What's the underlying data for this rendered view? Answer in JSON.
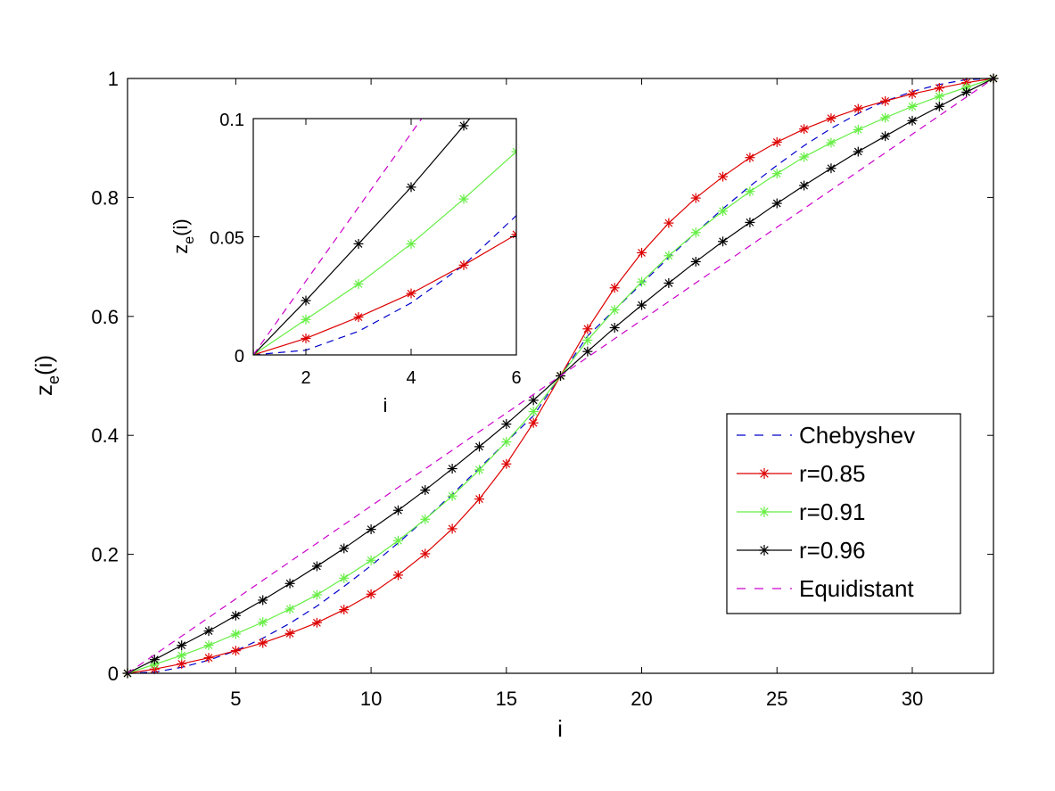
{
  "chart_data": [
    {
      "type": "line",
      "panel": "main",
      "xlabel": "i",
      "ylabel_base": "z",
      "ylabel_sub": "e",
      "ylabel_tail": "(i)",
      "xlim": [
        1,
        33
      ],
      "ylim": [
        0,
        1
      ],
      "xticks": [
        5,
        10,
        15,
        20,
        25,
        30
      ],
      "xtick_labels": [
        "5",
        "10",
        "15",
        "20",
        "25",
        "30"
      ],
      "yticks": [
        0,
        0.2,
        0.4,
        0.6,
        0.8,
        1
      ],
      "ytick_labels": [
        "0",
        "0.2",
        "0.4",
        "0.6",
        "0.8",
        "1"
      ],
      "legend_position": "lower-right",
      "x": [
        1,
        2,
        3,
        4,
        5,
        6,
        7,
        8,
        9,
        10,
        11,
        12,
        13,
        14,
        15,
        16,
        17,
        18,
        19,
        20,
        21,
        22,
        23,
        24,
        25,
        26,
        27,
        28,
        29,
        30,
        31,
        32,
        33
      ],
      "series": [
        {
          "name": "Chebyshev",
          "color": "#0000cc",
          "style": "dashed",
          "marker": "none",
          "values": [
            0.0,
            0.002,
            0.01,
            0.022,
            0.038,
            0.059,
            0.084,
            0.113,
            0.146,
            0.181,
            0.219,
            0.259,
            0.301,
            0.345,
            0.389,
            0.433,
            0.5,
            0.567,
            0.611,
            0.655,
            0.699,
            0.741,
            0.781,
            0.819,
            0.854,
            0.887,
            0.916,
            0.941,
            0.962,
            0.978,
            0.99,
            0.998,
            1.0
          ]
        },
        {
          "name": "r=0.85",
          "color": "#dd0000",
          "style": "solid",
          "marker": "asterisk",
          "values": [
            0.0,
            0.007,
            0.016,
            0.026,
            0.038,
            0.051,
            0.067,
            0.085,
            0.107,
            0.133,
            0.165,
            0.201,
            0.243,
            0.293,
            0.352,
            0.421,
            0.5,
            0.579,
            0.648,
            0.707,
            0.757,
            0.799,
            0.835,
            0.867,
            0.893,
            0.915,
            0.933,
            0.949,
            0.962,
            0.974,
            0.984,
            0.993,
            1.0
          ]
        },
        {
          "name": "r=0.91",
          "color": "#66ee44",
          "style": "solid",
          "marker": "asterisk",
          "values": [
            0.0,
            0.015,
            0.03,
            0.047,
            0.066,
            0.086,
            0.108,
            0.132,
            0.16,
            0.19,
            0.223,
            0.259,
            0.298,
            0.342,
            0.389,
            0.44,
            0.5,
            0.56,
            0.611,
            0.658,
            0.702,
            0.741,
            0.777,
            0.81,
            0.84,
            0.868,
            0.892,
            0.914,
            0.934,
            0.953,
            0.97,
            0.985,
            1.0
          ]
        },
        {
          "name": "r=0.96",
          "color": "#000000",
          "style": "solid",
          "marker": "asterisk",
          "values": [
            0.0,
            0.023,
            0.047,
            0.071,
            0.097,
            0.123,
            0.151,
            0.18,
            0.21,
            0.242,
            0.274,
            0.308,
            0.344,
            0.381,
            0.419,
            0.459,
            0.5,
            0.541,
            0.581,
            0.619,
            0.656,
            0.692,
            0.726,
            0.758,
            0.79,
            0.82,
            0.849,
            0.877,
            0.903,
            0.929,
            0.953,
            0.977,
            1.0
          ]
        },
        {
          "name": "Equidistant",
          "color": "#cc00cc",
          "style": "dashed",
          "marker": "none",
          "values": [
            0.0,
            0.03125,
            0.0625,
            0.09375,
            0.125,
            0.15625,
            0.1875,
            0.21875,
            0.25,
            0.28125,
            0.3125,
            0.34375,
            0.375,
            0.40625,
            0.4375,
            0.46875,
            0.5,
            0.53125,
            0.5625,
            0.59375,
            0.625,
            0.65625,
            0.6875,
            0.71875,
            0.75,
            0.78125,
            0.8125,
            0.84375,
            0.875,
            0.90625,
            0.9375,
            0.96875,
            1.0
          ]
        }
      ]
    },
    {
      "type": "line",
      "panel": "inset",
      "xlabel": "i",
      "ylabel_base": "z",
      "ylabel_sub": "e",
      "ylabel_tail": "(i)",
      "xlim": [
        1,
        6
      ],
      "ylim": [
        0,
        0.1
      ],
      "xticks": [
        2,
        4,
        6
      ],
      "xtick_labels": [
        "2",
        "4",
        "6"
      ],
      "yticks": [
        0,
        0.05,
        0.1
      ],
      "ytick_labels": [
        "0",
        "0.05",
        "0.1"
      ]
    }
  ],
  "legend": {
    "entries": [
      {
        "label": "Chebyshev"
      },
      {
        "label": "r=0.85"
      },
      {
        "label": "r=0.91"
      },
      {
        "label": "r=0.96"
      },
      {
        "label": "Equidistant"
      }
    ]
  }
}
